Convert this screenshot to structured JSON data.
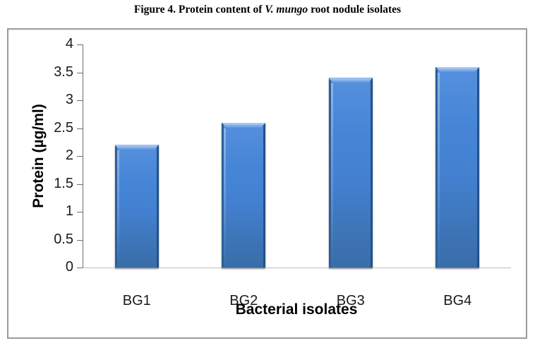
{
  "caption": {
    "prefix": "Figure 4. Protein content of ",
    "italic": "V. mungo",
    "suffix": " root nodule isolates"
  },
  "chart_data": {
    "type": "bar",
    "categories": [
      "BG1",
      "BG2",
      "BG3",
      "BG4"
    ],
    "values": [
      2.2,
      2.6,
      3.4,
      3.6
    ],
    "title": "Figure 4. Protein content of V. mungo root nodule isolates",
    "xlabel": "Bacterial isolates",
    "ylabel": "Protein (µg/ml)",
    "ylim": [
      0,
      4
    ],
    "yticks": [
      0,
      0.5,
      1,
      1.5,
      2,
      2.5,
      3,
      3.5,
      4
    ],
    "grid": false,
    "legend": "none",
    "bar_color": "#4380d0",
    "bar_edge_color": "#2d5f9b",
    "axis_color": "#6e6e6e",
    "baseline_color": "#bfbfbf",
    "frame_border_color": "#9a9a9a"
  }
}
